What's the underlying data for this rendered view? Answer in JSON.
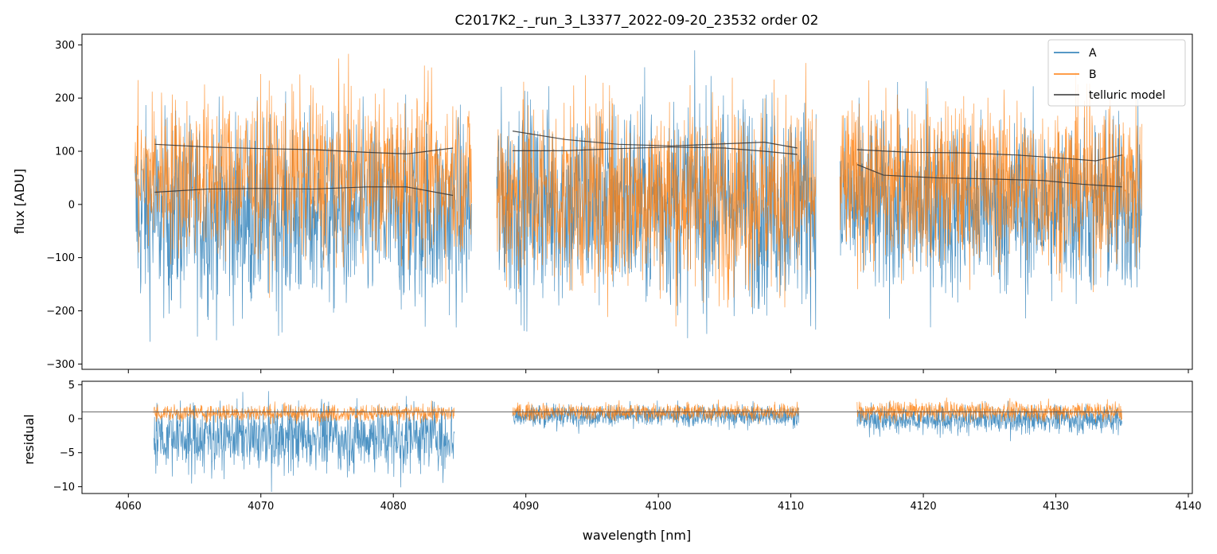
{
  "chart_data": [
    {
      "type": "line",
      "panel": "top",
      "title": "C2017K2_-_run_3_L3377_2022-09-20_23532  order 02",
      "xlabel": "",
      "ylabel": "flux [ADU]",
      "xlim": [
        4056.5,
        4140.3
      ],
      "ylim": [
        -310,
        320
      ],
      "yticks": [
        -300,
        -200,
        -100,
        0,
        100,
        200,
        300
      ],
      "ytick_labels": [
        "−300",
        "−200",
        "−100",
        "0",
        "100",
        "200",
        "300"
      ],
      "xticks": [
        4060,
        4070,
        4080,
        4090,
        4100,
        4110,
        4120,
        4130,
        4140
      ],
      "legend_position": "top-right",
      "segments": [
        {
          "x": [
            4060.5,
            4085.9
          ],
          "A_mean": -20,
          "A_noise": 130,
          "B_mean": 55,
          "B_noise": 110
        },
        {
          "x": [
            4087.8,
            4111.9
          ],
          "A_mean": 5,
          "A_noise": 140,
          "B_mean": 20,
          "B_noise": 130
        },
        {
          "x": [
            4113.7,
            4136.5
          ],
          "A_mean": -5,
          "A_noise": 120,
          "B_mean": 40,
          "B_noise": 110
        }
      ],
      "series": [
        {
          "name": "A",
          "color": "#1f77b4"
        },
        {
          "name": "B",
          "color": "#ff7f0e"
        },
        {
          "name": "telluric model",
          "color": "#333333"
        }
      ],
      "telluric_model": [
        {
          "x": [
            4062,
            4066,
            4070,
            4074,
            4078,
            4081,
            4084.5
          ],
          "y": [
            113,
            108,
            105,
            103,
            98,
            95,
            106
          ]
        },
        {
          "x": [
            4062,
            4066,
            4070,
            4074,
            4078,
            4081,
            4084.5
          ],
          "y": [
            23,
            29,
            30,
            29,
            33,
            33,
            17
          ]
        },
        {
          "x": [
            4089,
            4093,
            4097,
            4101,
            4105,
            4108,
            4110.5
          ],
          "y": [
            138,
            122,
            113,
            110,
            114,
            117,
            106
          ]
        },
        {
          "x": [
            4089,
            4093,
            4097,
            4101,
            4105,
            4108,
            4110.5
          ],
          "y": [
            101,
            101,
            105,
            108,
            106,
            100,
            94
          ]
        },
        {
          "x": [
            4115,
            4119,
            4123,
            4127,
            4131,
            4133,
            4135
          ],
          "y": [
            103,
            98,
            97,
            93,
            86,
            82,
            93
          ]
        },
        {
          "x": [
            4115,
            4117,
            4121,
            4125,
            4129,
            4132,
            4135
          ],
          "y": [
            75,
            55,
            50,
            48,
            45,
            38,
            33
          ]
        }
      ]
    },
    {
      "type": "line",
      "panel": "bottom",
      "title": "",
      "xlabel": "wavelength [nm]",
      "ylabel": "residual",
      "xlim": [
        4056.5,
        4140.3
      ],
      "ylim": [
        -11,
        5.5
      ],
      "yticks": [
        -10,
        -5,
        0,
        5
      ],
      "ytick_labels": [
        "−10",
        "−5",
        "0",
        "5"
      ],
      "xticks": [
        4060,
        4070,
        4080,
        4090,
        4100,
        4110,
        4120,
        4130,
        4140
      ],
      "xtick_labels": [
        "4060",
        "4070",
        "4080",
        "4090",
        "4100",
        "4110",
        "4120",
        "4130",
        "4140"
      ],
      "reference_line": 1,
      "segments": [
        {
          "x": [
            4061.9,
            4084.6
          ],
          "A_mean": -2.5,
          "A_noise": 3.5,
          "B_mean": 0.8,
          "B_noise": 0.9
        },
        {
          "x": [
            4089.0,
            4110.6
          ],
          "A_mean": 0.5,
          "A_noise": 1.1,
          "B_mean": 1.0,
          "B_noise": 0.9
        },
        {
          "x": [
            4115.0,
            4135.0
          ],
          "A_mean": 0.0,
          "A_noise": 1.4,
          "B_mean": 1.1,
          "B_noise": 1.0
        }
      ]
    }
  ]
}
